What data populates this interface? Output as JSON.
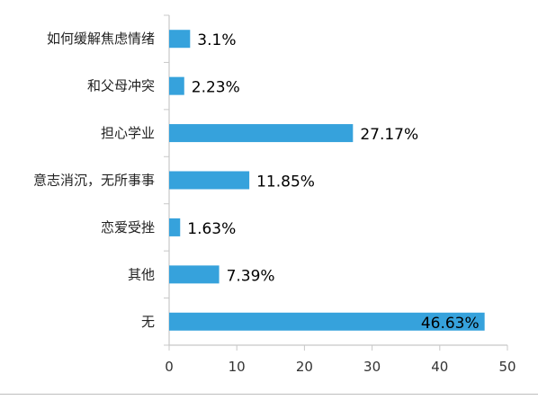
{
  "chart_data": {
    "type": "bar",
    "orientation": "horizontal",
    "title": "",
    "xlabel": "",
    "ylabel": "",
    "categories": [
      "如何缓解焦虑情绪",
      "和父母冲突",
      "担心学业",
      "意志消沉，无所事事",
      "恋爱受挫",
      "其他",
      "无"
    ],
    "values": [
      3.1,
      2.23,
      27.17,
      11.85,
      1.63,
      7.39,
      46.63
    ],
    "data_labels": [
      "3.1%",
      "2.23%",
      "27.17%",
      "11.85%",
      "1.63%",
      "7.39%",
      "46.63%"
    ],
    "xlim": [
      0,
      50
    ],
    "x_ticks": [
      0,
      10,
      20,
      30,
      40,
      50
    ],
    "x_tick_labels": [
      "0",
      "10",
      "20",
      "30",
      "40",
      "50"
    ],
    "grid": false,
    "legend": "none",
    "bar_color": "#36a2dc",
    "label_color": "#000000",
    "axis_color": "#c8c8c8"
  }
}
